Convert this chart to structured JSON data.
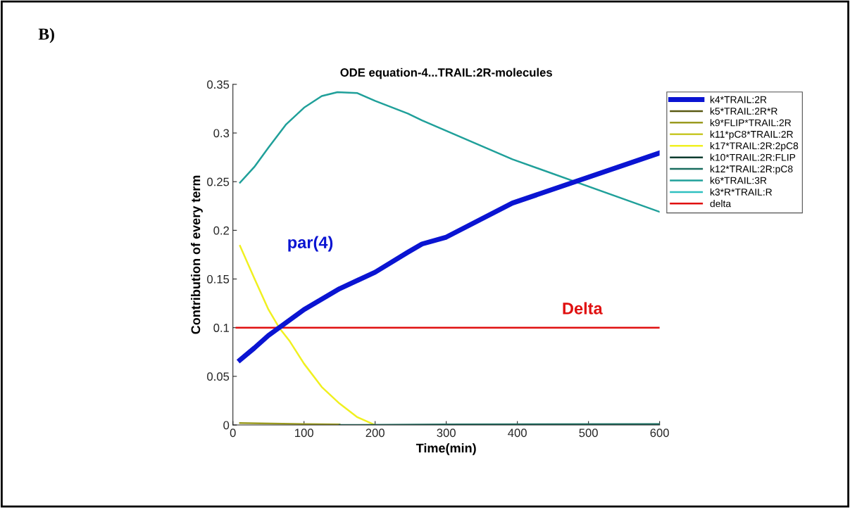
{
  "chart_data": {
    "type": "line",
    "title": "ODE equation-4...TRAIL:2R-molecules",
    "xlabel": "Time(min)",
    "ylabel": "Contribution of every term",
    "xlim": [
      0,
      600
    ],
    "xticks": [
      0,
      100,
      200,
      300,
      400,
      500,
      600
    ],
    "ylim": [
      0,
      0.35
    ],
    "yticks": [
      0,
      0.05,
      0.1,
      0.15,
      0.2,
      0.25,
      0.3,
      0.35
    ],
    "grid": false,
    "legend": "right",
    "marker": "none",
    "line_style": "solid",
    "annotations": [
      "B)",
      "par(4)",
      "Delta"
    ],
    "series": [
      {
        "name": "k4*TRAIL:2R",
        "color": "#0a14d2",
        "x": [
          10,
          30,
          50,
          65,
          100,
          150,
          200,
          246,
          266,
          300,
          393,
          600
        ],
        "values": [
          0.0668,
          0.079,
          0.092,
          0.1,
          0.1186,
          0.14,
          0.157,
          0.1775,
          0.186,
          0.193,
          0.228,
          0.2795
        ]
      },
      {
        "name": "k5*TRAIL:2R*R",
        "color": "#5a5a14"
      },
      {
        "name": "k9*FLIP*TRAIL:2R",
        "color": "#9a9a20",
        "x": [
          10,
          100,
          150
        ],
        "values": [
          0.002,
          0.001,
          0.0005
        ]
      },
      {
        "name": "k11*pC8*TRAIL:2R",
        "color": "#c8c828"
      },
      {
        "name": "k17*TRAIL:2R:2pC8",
        "color": "#f0f020",
        "x": [
          10,
          30,
          50,
          65,
          80,
          100,
          125,
          150,
          175,
          200
        ],
        "values": [
          0.184,
          0.151,
          0.1186,
          0.1,
          0.086,
          0.063,
          0.039,
          0.022,
          0.008,
          0
        ]
      },
      {
        "name": "k10*TRAIL:2R:FLIP",
        "color": "#0d3d30"
      },
      {
        "name": "k12*TRAIL:2R:pC8",
        "color": "#1a6e60",
        "x": [
          150,
          300,
          600
        ],
        "values": [
          0,
          0.0005,
          0.001
        ]
      },
      {
        "name": "k6*TRAIL:3R",
        "color": "#20a09a",
        "x": [
          10,
          30,
          50,
          75,
          100,
          125,
          147,
          175,
          200,
          246,
          266,
          393,
          600
        ],
        "values": [
          0.249,
          0.265,
          0.285,
          0.309,
          0.326,
          0.338,
          0.342,
          0.341,
          0.333,
          0.32,
          0.313,
          0.273,
          0.219
        ]
      },
      {
        "name": "k3*R*TRAIL:R",
        "color": "#30c0c0"
      },
      {
        "name": "delta",
        "color": "#e01010",
        "x": [
          5,
          600
        ],
        "values": [
          0.1,
          0.1
        ]
      }
    ]
  }
}
